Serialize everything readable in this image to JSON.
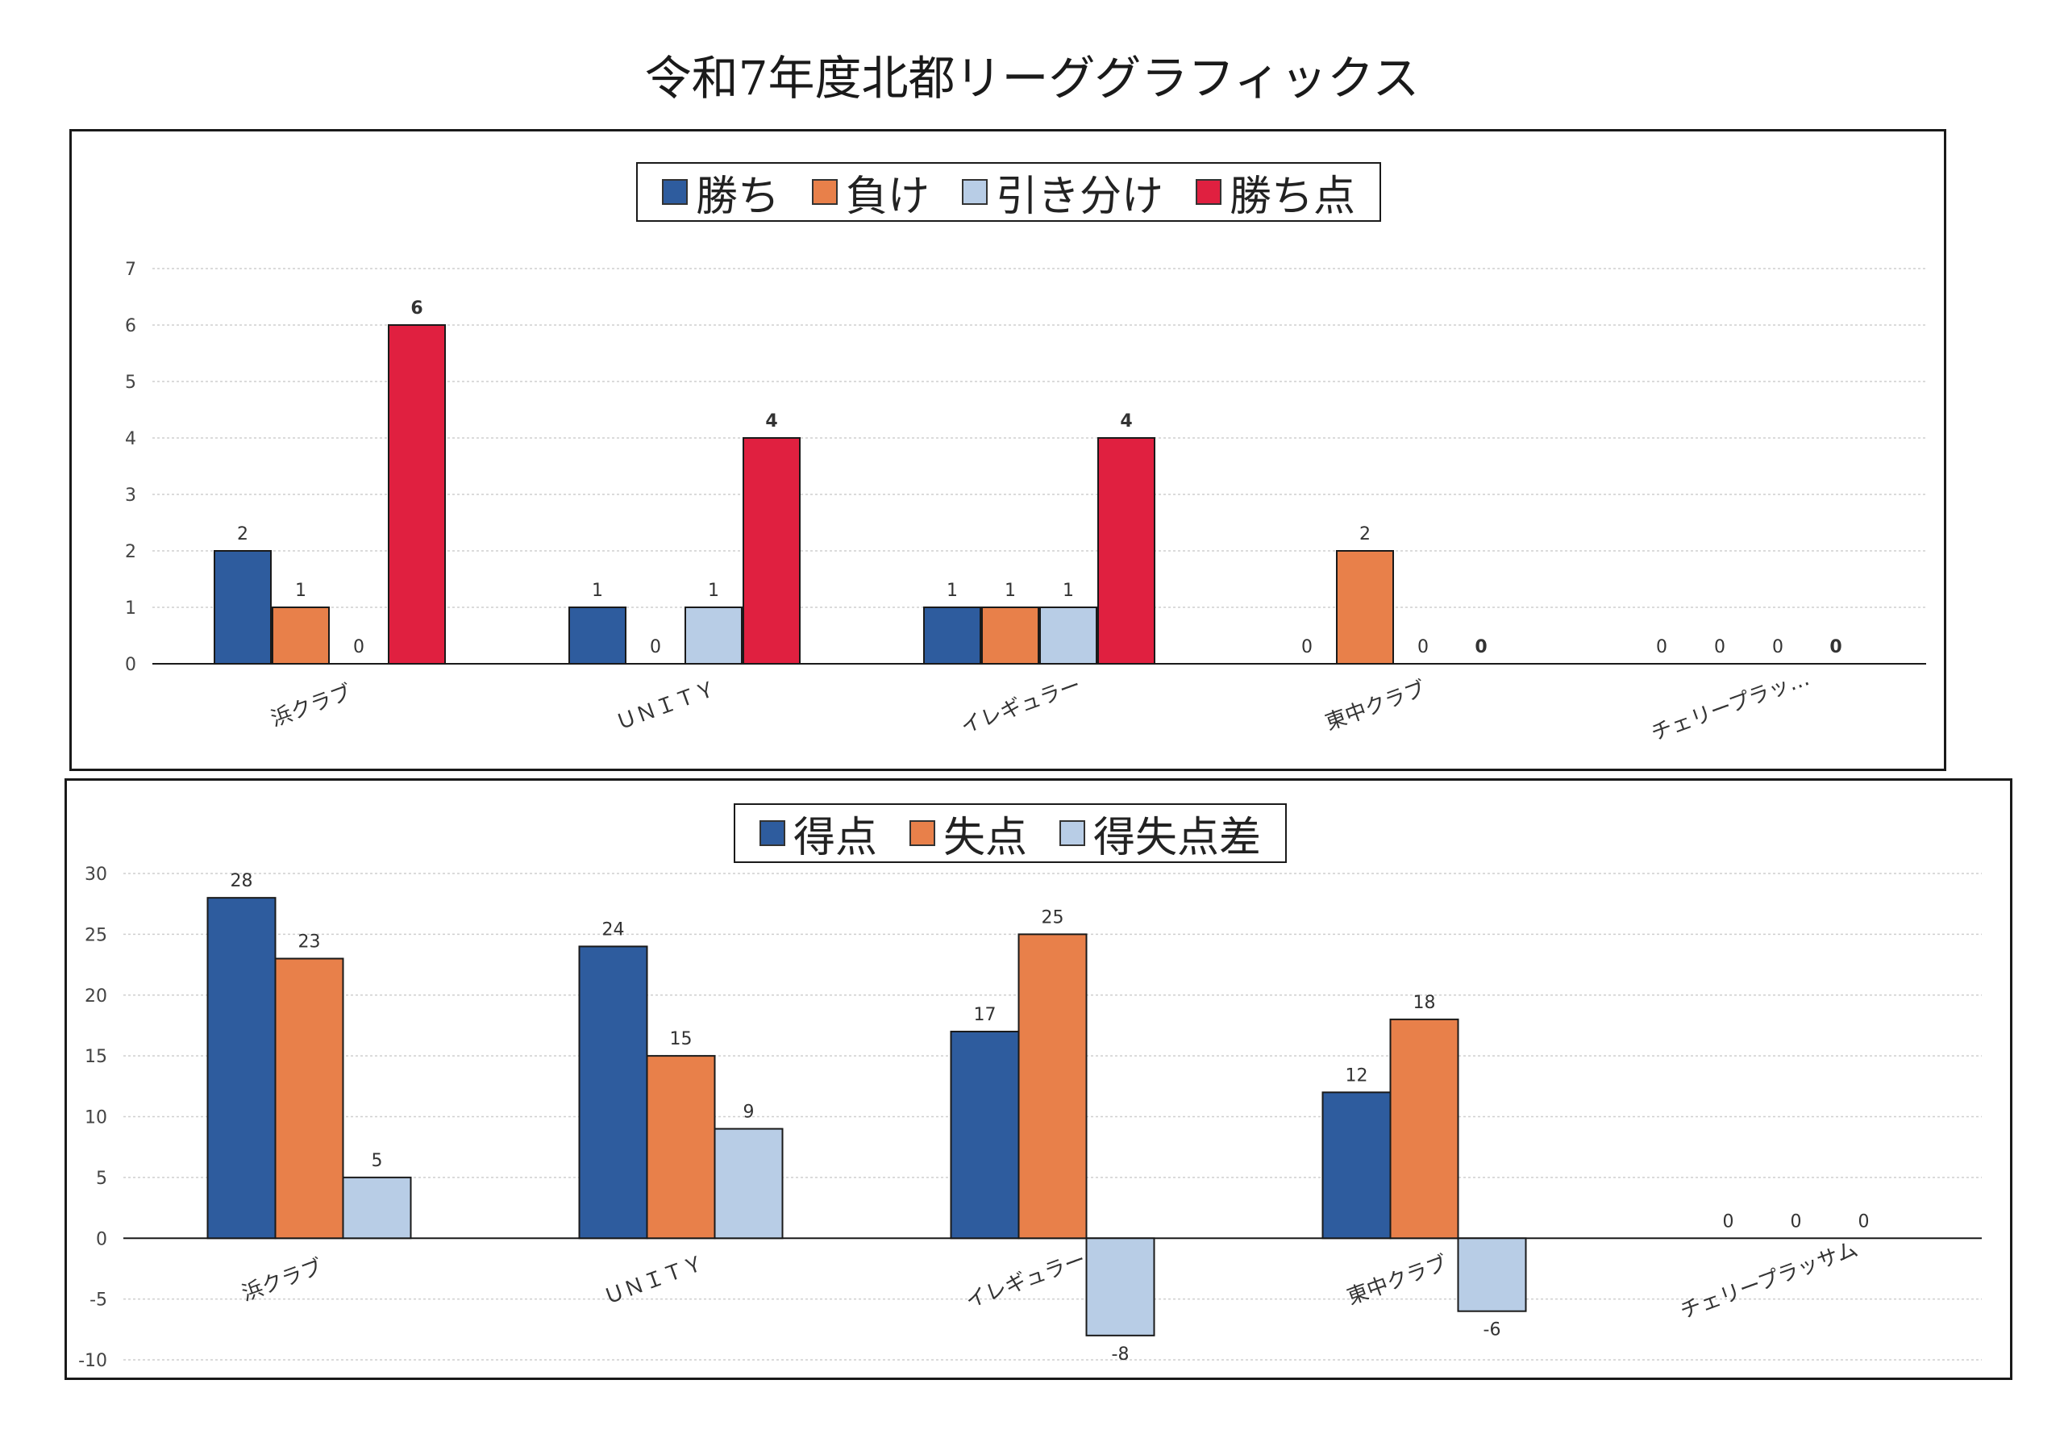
{
  "title": "令和7年度北都リーググラフィックス",
  "chart_data": [
    {
      "type": "bar",
      "categories": [
        "浜クラブ",
        "ＵＮＩＴＹ",
        "イレギュラー",
        "東中クラブ",
        "チェリープラッ…"
      ],
      "series": [
        {
          "name": "勝ち",
          "values": [
            2,
            1,
            1,
            0,
            0
          ],
          "color": "#2e5c9e"
        },
        {
          "name": "負け",
          "values": [
            1,
            0,
            1,
            2,
            0
          ],
          "color": "#e8804a"
        },
        {
          "name": "引き分け",
          "values": [
            0,
            1,
            1,
            0,
            0
          ],
          "color": "#b8cde6"
        },
        {
          "name": "勝ち点",
          "values": [
            6,
            4,
            4,
            0,
            0
          ],
          "color": "#e02040"
        }
      ],
      "ylim": [
        0,
        7
      ],
      "yticks": [
        0,
        1,
        2,
        3,
        4,
        5,
        6,
        7
      ],
      "grid": true,
      "legend": "top-center"
    },
    {
      "type": "bar",
      "categories": [
        "浜クラブ",
        "ＵＮＩＴＹ",
        "イレギュラー",
        "東中クラブ",
        "チェリープラッサム"
      ],
      "series": [
        {
          "name": "得点",
          "values": [
            28,
            24,
            17,
            12,
            0
          ],
          "color": "#2e5c9e"
        },
        {
          "name": "失点",
          "values": [
            23,
            15,
            25,
            18,
            0
          ],
          "color": "#e8804a"
        },
        {
          "name": "得失点差",
          "values": [
            5,
            9,
            -8,
            -6,
            0
          ],
          "color": "#b8cde6"
        }
      ],
      "ylim": [
        -10,
        30
      ],
      "yticks": [
        -10,
        -5,
        0,
        5,
        10,
        15,
        20,
        25,
        30
      ],
      "grid": true,
      "legend": "top-center"
    }
  ]
}
